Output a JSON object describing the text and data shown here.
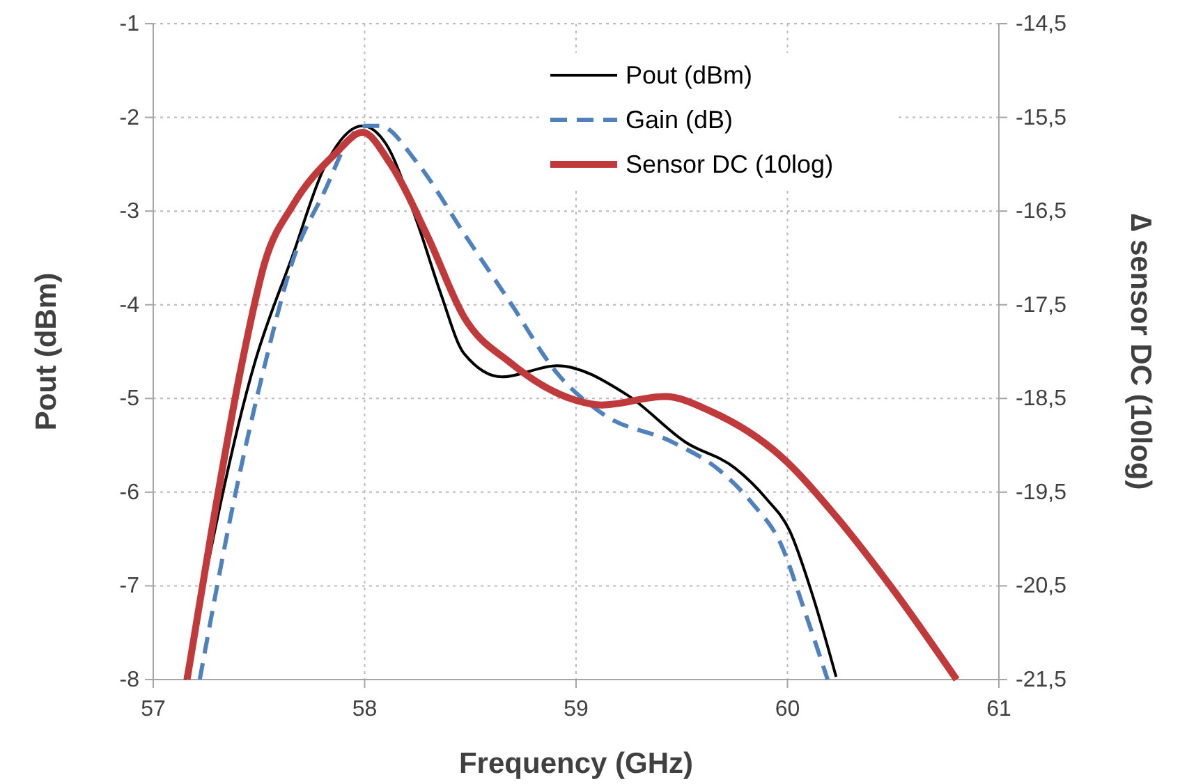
{
  "chart_data": {
    "type": "line",
    "xlabel": "Frequency (GHz)",
    "ylabel": "Pout (dBm)",
    "y2label": "∆ sensor DC (10log)",
    "xlim": [
      57,
      61
    ],
    "xticks": [
      57,
      58,
      59,
      60,
      61
    ],
    "ylim": [
      -8,
      -1
    ],
    "yticks": [
      -8,
      -7,
      -6,
      -5,
      -4,
      -3,
      -2,
      -1
    ],
    "y2lim": [
      -21.5,
      -14.5
    ],
    "y2ticks": [
      {
        "value": -21.5,
        "label": "-21,5"
      },
      {
        "value": -20.5,
        "label": "-20,5"
      },
      {
        "value": -19.5,
        "label": "-19,5"
      },
      {
        "value": -18.5,
        "label": "-18,5"
      },
      {
        "value": -17.5,
        "label": "-17,5"
      },
      {
        "value": -16.5,
        "label": "-16,5"
      },
      {
        "value": -15.5,
        "label": "-15,5"
      },
      {
        "value": -14.5,
        "label": "-14,5"
      }
    ],
    "grid": true,
    "legend": "top right",
    "marker": "none",
    "series": [
      {
        "name": "Pout (dBm)",
        "color": "#000000",
        "line_style": "solid",
        "x": [
          57.15,
          57.48,
          57.66,
          57.81,
          57.99,
          58.1,
          58.25,
          58.36,
          58.47,
          58.65,
          58.91,
          59.24,
          59.52,
          59.75,
          59.9,
          60.01,
          60.12,
          60.23
        ],
        "values": [
          -8,
          -4.62,
          -3.47,
          -2.53,
          -2.09,
          -2.28,
          -3.13,
          -3.88,
          -4.52,
          -4.77,
          -4.65,
          -4.96,
          -5.47,
          -5.74,
          -6.07,
          -6.41,
          -7.11,
          -7.97
        ]
      },
      {
        "name": "Gain (dB)",
        "color": "#4f81bd",
        "line_style": "dashed",
        "x": [
          57.22,
          57.38,
          57.53,
          57.66,
          57.81,
          57.94,
          58.01,
          58.07,
          58.25,
          58.47,
          58.69,
          58.91,
          59.13,
          59.46,
          59.68,
          59.83,
          59.97,
          60.08,
          60.19
        ],
        "values": [
          -8,
          -6.11,
          -4.62,
          -3.53,
          -2.79,
          -2.19,
          -2.09,
          -2.09,
          -2.49,
          -3.24,
          -3.98,
          -4.73,
          -5.17,
          -5.47,
          -5.77,
          -6.11,
          -6.56,
          -7.26,
          -8
        ]
      },
      {
        "name": "Sensor DC (10log)",
        "color": "#c0393b",
        "line_style": "solid",
        "axis": "y2",
        "x": [
          57.16,
          57.28,
          57.42,
          57.53,
          57.66,
          57.86,
          57.99,
          58.12,
          58.3,
          58.47,
          58.69,
          59.0,
          59.12,
          59.42,
          59.64,
          59.97,
          60.23,
          60.49,
          60.8
        ],
        "values": [
          -21.5,
          -19.86,
          -18.12,
          -17.03,
          -16.44,
          -15.89,
          -15.66,
          -15.99,
          -16.78,
          -17.63,
          -18.12,
          -18.52,
          -18.57,
          -18.48,
          -18.64,
          -19.12,
          -19.76,
          -20.51,
          -21.5
        ]
      }
    ]
  }
}
